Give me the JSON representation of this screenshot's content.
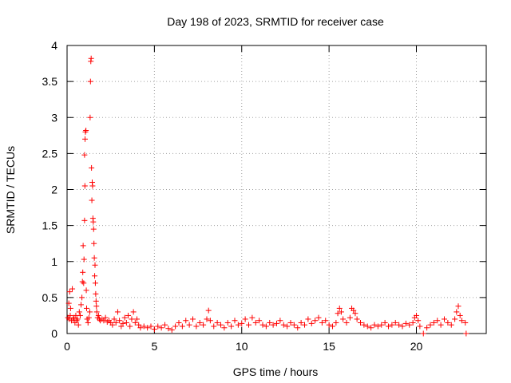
{
  "chart_data": {
    "type": "scatter",
    "title": "Day 198 of 2023, SRMTID for receiver case",
    "xlabel": "GPS time / hours",
    "ylabel": "SRMTID / TECUs",
    "xlim": [
      0,
      24
    ],
    "ylim": [
      0,
      4
    ],
    "xticks": [
      0,
      5,
      10,
      15,
      20
    ],
    "yticks": [
      0,
      0.5,
      1,
      1.5,
      2,
      2.5,
      3,
      3.5,
      4
    ],
    "grid": true,
    "marker_color": "#ff0000",
    "series": [
      {
        "name": "SRMTID",
        "points": [
          [
            0.05,
            0.22
          ],
          [
            0.1,
            0.42
          ],
          [
            0.12,
            0.2
          ],
          [
            0.15,
            0.58
          ],
          [
            0.18,
            0.25
          ],
          [
            0.2,
            0.35
          ],
          [
            0.25,
            0.18
          ],
          [
            0.3,
            0.62
          ],
          [
            0.35,
            0.2
          ],
          [
            0.4,
            0.22
          ],
          [
            0.45,
            0.15
          ],
          [
            0.5,
            0.25
          ],
          [
            0.55,
            0.18
          ],
          [
            0.6,
            0.2
          ],
          [
            0.65,
            0.12
          ],
          [
            0.7,
            0.3
          ],
          [
            0.75,
            0.25
          ],
          [
            0.8,
            0.4
          ],
          [
            0.85,
            0.5
          ],
          [
            0.88,
            0.72
          ],
          [
            0.9,
            0.85
          ],
          [
            0.92,
            1.22
          ],
          [
            0.95,
            0.7
          ],
          [
            0.97,
            1.03
          ],
          [
            1.0,
            1.57
          ],
          [
            1.0,
            2.48
          ],
          [
            1.02,
            2.05
          ],
          [
            1.03,
            2.7
          ],
          [
            1.05,
            2.8
          ],
          [
            1.08,
            2.82
          ],
          [
            1.1,
            0.6
          ],
          [
            1.12,
            0.35
          ],
          [
            1.15,
            0.2
          ],
          [
            1.2,
            0.15
          ],
          [
            1.25,
            0.22
          ],
          [
            1.3,
            0.3
          ],
          [
            1.32,
            3.0
          ],
          [
            1.34,
            3.5
          ],
          [
            1.36,
            3.78
          ],
          [
            1.38,
            3.82
          ],
          [
            1.4,
            2.3
          ],
          [
            1.42,
            1.85
          ],
          [
            1.44,
            2.1
          ],
          [
            1.46,
            2.05
          ],
          [
            1.48,
            1.6
          ],
          [
            1.5,
            1.55
          ],
          [
            1.52,
            1.45
          ],
          [
            1.54,
            1.25
          ],
          [
            1.56,
            1.05
          ],
          [
            1.58,
            0.8
          ],
          [
            1.6,
            0.95
          ],
          [
            1.62,
            0.7
          ],
          [
            1.64,
            0.55
          ],
          [
            1.66,
            0.45
          ],
          [
            1.68,
            0.38
          ],
          [
            1.7,
            0.3
          ],
          [
            1.75,
            0.22
          ],
          [
            1.8,
            0.25
          ],
          [
            1.85,
            0.2
          ],
          [
            1.9,
            0.18
          ],
          [
            2.0,
            0.2
          ],
          [
            2.1,
            0.18
          ],
          [
            2.2,
            0.22
          ],
          [
            2.3,
            0.16
          ],
          [
            2.4,
            0.18
          ],
          [
            2.5,
            0.15
          ],
          [
            2.6,
            0.12
          ],
          [
            2.7,
            0.2
          ],
          [
            2.8,
            0.15
          ],
          [
            2.9,
            0.3
          ],
          [
            3.0,
            0.18
          ],
          [
            3.1,
            0.1
          ],
          [
            3.2,
            0.14
          ],
          [
            3.3,
            0.22
          ],
          [
            3.4,
            0.15
          ],
          [
            3.5,
            0.25
          ],
          [
            3.6,
            0.1
          ],
          [
            3.7,
            0.2
          ],
          [
            3.8,
            0.3
          ],
          [
            3.9,
            0.15
          ],
          [
            4.0,
            0.2
          ],
          [
            4.1,
            0.12
          ],
          [
            4.2,
            0.08
          ],
          [
            4.4,
            0.1
          ],
          [
            4.6,
            0.08
          ],
          [
            4.8,
            0.1
          ],
          [
            5.0,
            0.06
          ],
          [
            5.2,
            0.1
          ],
          [
            5.4,
            0.08
          ],
          [
            5.6,
            0.12
          ],
          [
            5.8,
            0.07
          ],
          [
            6.0,
            0.05
          ],
          [
            6.2,
            0.1
          ],
          [
            6.4,
            0.15
          ],
          [
            6.6,
            0.1
          ],
          [
            6.8,
            0.18
          ],
          [
            7.0,
            0.12
          ],
          [
            7.2,
            0.2
          ],
          [
            7.4,
            0.1
          ],
          [
            7.6,
            0.15
          ],
          [
            7.8,
            0.12
          ],
          [
            8.0,
            0.2
          ],
          [
            8.1,
            0.32
          ],
          [
            8.2,
            0.18
          ],
          [
            8.4,
            0.1
          ],
          [
            8.6,
            0.15
          ],
          [
            8.8,
            0.12
          ],
          [
            9.0,
            0.08
          ],
          [
            9.2,
            0.15
          ],
          [
            9.4,
            0.1
          ],
          [
            9.6,
            0.18
          ],
          [
            9.8,
            0.12
          ],
          [
            10.0,
            0.14
          ],
          [
            10.2,
            0.2
          ],
          [
            10.4,
            0.12
          ],
          [
            10.6,
            0.22
          ],
          [
            10.8,
            0.15
          ],
          [
            11.0,
            0.18
          ],
          [
            11.2,
            0.12
          ],
          [
            11.4,
            0.1
          ],
          [
            11.6,
            0.15
          ],
          [
            11.8,
            0.12
          ],
          [
            12.0,
            0.14
          ],
          [
            12.2,
            0.18
          ],
          [
            12.4,
            0.12
          ],
          [
            12.6,
            0.1
          ],
          [
            12.8,
            0.15
          ],
          [
            13.0,
            0.12
          ],
          [
            13.2,
            0.08
          ],
          [
            13.4,
            0.15
          ],
          [
            13.6,
            0.12
          ],
          [
            13.8,
            0.2
          ],
          [
            14.0,
            0.14
          ],
          [
            14.2,
            0.18
          ],
          [
            14.4,
            0.22
          ],
          [
            14.6,
            0.15
          ],
          [
            14.8,
            0.18
          ],
          [
            15.0,
            0.12
          ],
          [
            15.2,
            0.1
          ],
          [
            15.4,
            0.15
          ],
          [
            15.5,
            0.28
          ],
          [
            15.6,
            0.35
          ],
          [
            15.7,
            0.3
          ],
          [
            15.8,
            0.2
          ],
          [
            16.0,
            0.15
          ],
          [
            16.2,
            0.22
          ],
          [
            16.3,
            0.35
          ],
          [
            16.4,
            0.32
          ],
          [
            16.5,
            0.28
          ],
          [
            16.6,
            0.2
          ],
          [
            16.8,
            0.15
          ],
          [
            17.0,
            0.12
          ],
          [
            17.2,
            0.1
          ],
          [
            17.4,
            0.08
          ],
          [
            17.6,
            0.12
          ],
          [
            17.8,
            0.1
          ],
          [
            18.0,
            0.12
          ],
          [
            18.2,
            0.15
          ],
          [
            18.4,
            0.1
          ],
          [
            18.6,
            0.12
          ],
          [
            18.8,
            0.15
          ],
          [
            19.0,
            0.12
          ],
          [
            19.2,
            0.1
          ],
          [
            19.4,
            0.14
          ],
          [
            19.6,
            0.12
          ],
          [
            19.8,
            0.15
          ],
          [
            19.9,
            0.22
          ],
          [
            20.0,
            0.25
          ],
          [
            20.1,
            0.18
          ],
          [
            20.2,
            0.1
          ],
          [
            20.4,
            0.0
          ],
          [
            20.6,
            0.08
          ],
          [
            20.8,
            0.12
          ],
          [
            21.0,
            0.15
          ],
          [
            21.2,
            0.18
          ],
          [
            21.4,
            0.12
          ],
          [
            21.6,
            0.2
          ],
          [
            21.8,
            0.15
          ],
          [
            22.0,
            0.12
          ],
          [
            22.2,
            0.2
          ],
          [
            22.3,
            0.3
          ],
          [
            22.4,
            0.38
          ],
          [
            22.5,
            0.25
          ],
          [
            22.6,
            0.18
          ],
          [
            22.8,
            0.15
          ],
          [
            22.85,
            0.0
          ]
        ]
      }
    ]
  }
}
